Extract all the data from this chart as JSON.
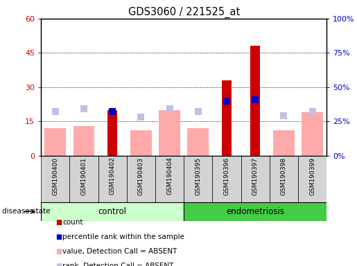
{
  "title": "GDS3060 / 221525_at",
  "samples": [
    "GSM190400",
    "GSM190401",
    "GSM190402",
    "GSM190403",
    "GSM190404",
    "GSM190395",
    "GSM190396",
    "GSM190397",
    "GSM190398",
    "GSM190399"
  ],
  "count_values": [
    0,
    0,
    20,
    0,
    0,
    0,
    33,
    48,
    0,
    0
  ],
  "percentile_values": [
    0,
    0,
    32,
    0,
    0,
    0,
    40,
    41,
    0,
    0
  ],
  "value_absent": [
    12,
    13,
    0,
    11,
    20,
    12,
    0,
    0,
    11,
    19
  ],
  "rank_absent": [
    32,
    34,
    0,
    28,
    34,
    32,
    0,
    0,
    29,
    32
  ],
  "ylim_left": [
    0,
    60
  ],
  "ylim_right": [
    0,
    100
  ],
  "yticks_left": [
    0,
    15,
    30,
    45,
    60
  ],
  "yticks_right": [
    0,
    25,
    50,
    75,
    100
  ],
  "ytick_labels_left": [
    "0",
    "15",
    "30",
    "45",
    "60"
  ],
  "ytick_labels_right": [
    "0%",
    "25%",
    "50%",
    "75%",
    "100%"
  ],
  "color_count": "#cc0000",
  "color_percentile": "#0000cc",
  "color_value_absent": "#ffaaaa",
  "color_rank_absent": "#c0c0e0",
  "control_label": "control",
  "endo_label": "endometriosis",
  "disease_state_label": "disease state",
  "legend_items": [
    {
      "label": "count",
      "color": "#cc0000"
    },
    {
      "label": "percentile rank within the sample",
      "color": "#0000cc"
    },
    {
      "label": "value, Detection Call = ABSENT",
      "color": "#ffaaaa"
    },
    {
      "label": "rank, Detection Call = ABSENT",
      "color": "#c0c0e0"
    }
  ],
  "dot_size": 55,
  "bg_plot": "#ffffff"
}
